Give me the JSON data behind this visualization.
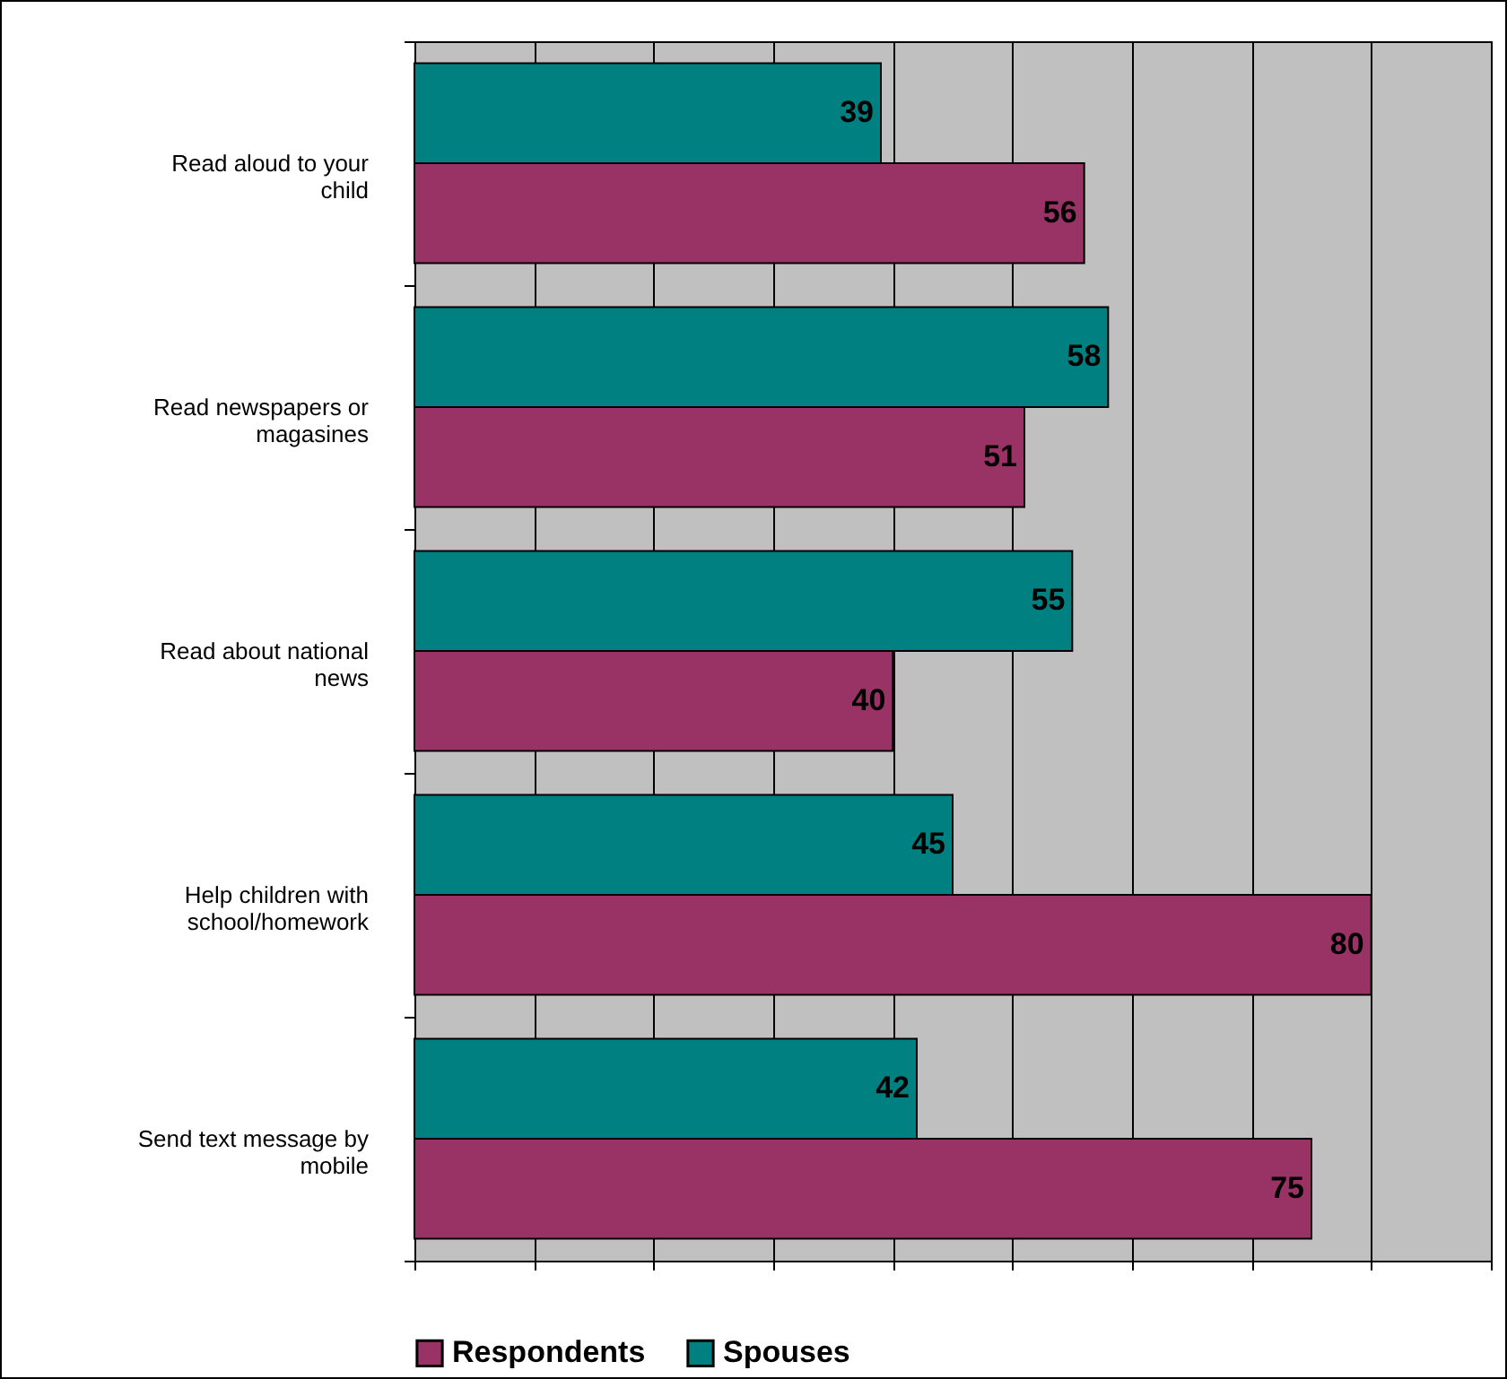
{
  "chart_data": {
    "type": "bar",
    "orientation": "horizontal",
    "categories": [
      "Read aloud to your child",
      "Read newspapers or magasines",
      "Read about national news",
      "Help children with school/homework",
      "Send text message by mobile"
    ],
    "series": [
      {
        "name": "Respondents",
        "color": "#993366",
        "values": [
          56,
          51,
          40,
          80,
          75
        ]
      },
      {
        "name": "Spouses",
        "color": "#008080",
        "values": [
          39,
          58,
          55,
          45,
          42
        ]
      }
    ],
    "xlim": [
      0,
      90
    ],
    "xticks": [
      {
        "value": 0,
        "label": null
      },
      {
        "value": 10,
        "label": null
      },
      {
        "value": 20,
        "label": null
      },
      {
        "value": 30,
        "label": null
      },
      {
        "value": 40,
        "label": null
      },
      {
        "value": 50,
        "label": null
      },
      {
        "value": 60,
        "label": null
      },
      {
        "value": 70,
        "label": null
      },
      {
        "value": 80,
        "label": null
      },
      {
        "value": 90,
        "label": null
      }
    ],
    "grid": "x",
    "data_labels": true,
    "legend": "bottom"
  }
}
